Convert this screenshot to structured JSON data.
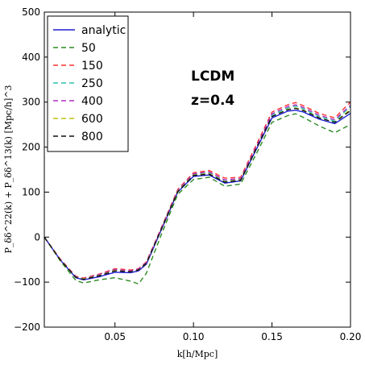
{
  "chart_data": {
    "type": "line",
    "xlabel": "k[h/Mpc]",
    "ylabel": "P_δδ^22(k) + P_δδ^13(k) [Mpc/h]^3",
    "xlim": [
      0.005,
      0.2
    ],
    "ylim": [
      -200,
      500
    ],
    "xticks": [
      0.05,
      0.1,
      0.15,
      0.2
    ],
    "xtick_labels": [
      "0.05",
      "0.10",
      "0.15",
      "0.20"
    ],
    "yticks": [
      -200,
      -100,
      0,
      100,
      200,
      300,
      400,
      500
    ],
    "ytick_labels": [
      "−200",
      "−100",
      "0",
      "100",
      "200",
      "300",
      "400",
      "500"
    ],
    "grid": false,
    "legend_position": "top-left",
    "annotations": [
      "LCDM",
      "z=0.4"
    ],
    "x": [
      0.005,
      0.015,
      0.025,
      0.03,
      0.04,
      0.05,
      0.06,
      0.065,
      0.07,
      0.08,
      0.09,
      0.1,
      0.11,
      0.12,
      0.13,
      0.14,
      0.15,
      0.16,
      0.165,
      0.17,
      0.18,
      0.19,
      0.2
    ],
    "series": [
      {
        "name": "analytic",
        "color": "#1f1fd6",
        "dash": "solid",
        "values": [
          0,
          -50,
          -90,
          -95,
          -88,
          -78,
          -79,
          -75,
          -60,
          20,
          100,
          135,
          138,
          120,
          125,
          195,
          265,
          280,
          282,
          278,
          262,
          252,
          275
        ]
      },
      {
        "name": "50",
        "color": "#2e8b24",
        "dash": "dashed",
        "values": [
          0,
          -52,
          -96,
          -102,
          -95,
          -90,
          -98,
          -104,
          -80,
          10,
          95,
          128,
          133,
          113,
          118,
          185,
          255,
          270,
          274,
          266,
          247,
          232,
          250
        ]
      },
      {
        "name": "150",
        "color": "#ff3333",
        "dash": "dashed",
        "values": [
          0,
          -48,
          -87,
          -91,
          -82,
          -70,
          -73,
          -70,
          -55,
          25,
          106,
          143,
          148,
          131,
          133,
          205,
          278,
          294,
          299,
          292,
          275,
          265,
          300
        ]
      },
      {
        "name": "250",
        "color": "#2ec4b0",
        "dash": "dashed",
        "values": [
          0,
          -50,
          -88,
          -93,
          -84,
          -73,
          -76,
          -72,
          -57,
          23,
          103,
          139,
          143,
          124,
          128,
          199,
          271,
          287,
          291,
          285,
          268,
          258,
          290
        ]
      },
      {
        "name": "400",
        "color": "#b02ec4",
        "dash": "dashed",
        "values": [
          0,
          -49,
          -88,
          -92,
          -83,
          -72,
          -75,
          -71,
          -56,
          24,
          104,
          141,
          145,
          127,
          130,
          201,
          274,
          290,
          294,
          288,
          271,
          261,
          293
        ]
      },
      {
        "name": "600",
        "color": "#b8c410",
        "dash": "dashed",
        "values": [
          0,
          -50,
          -89,
          -93,
          -85,
          -74,
          -77,
          -73,
          -58,
          22,
          102,
          138,
          141,
          123,
          127,
          197,
          268,
          284,
          287,
          282,
          265,
          255,
          284
        ]
      },
      {
        "name": "800",
        "color": "#111111",
        "dash": "dashed",
        "values": [
          0,
          -50,
          -89,
          -94,
          -86,
          -75,
          -77,
          -73,
          -58,
          22,
          101,
          137,
          140,
          122,
          126,
          197,
          268,
          283,
          286,
          281,
          265,
          255,
          281
        ]
      }
    ]
  }
}
